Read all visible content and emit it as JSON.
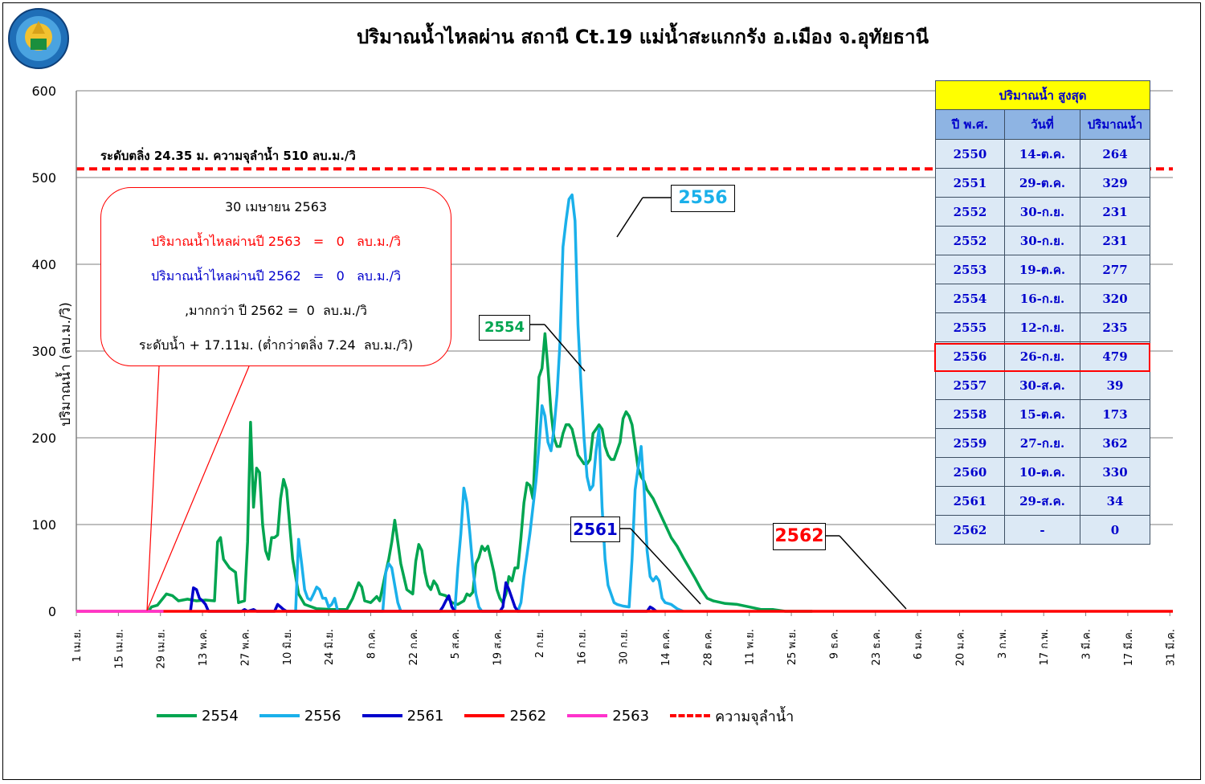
{
  "title": "ปริมาณน้ำไหลผ่าน สถานี Ct.19 แม่น้ำสะแกกรัง อ.เมือง จ.อุทัยธานี",
  "logo_text": "กรมชลประทาน",
  "ylabel": "ปริมาณน้ำ (ลบ.ม./วิ)",
  "flood_label": "ระดับตลิ่ง 24.35 ม. ความจุลำน้ำ 510 ลบ.ม./วิ",
  "callout": {
    "date": "30 เมษายน 2563",
    "line1": "ปริมาณน้ำไหลผ่านปี 2563   =   0   ลบ.ม./วิ",
    "line2": "ปริมาณน้ำไหลผ่านปี 2562   =   0   ลบ.ม./วิ",
    "line3": ",มากกว่า ปี 2562 =  0  ลบ.ม./วิ",
    "line4": "ระดับน้ำ + 17.11ม. (ต่ำกว่าตลิ่ง 7.24  ลบ.ม./วิ)"
  },
  "tags": {
    "t2556": "2556",
    "t2554": "2554",
    "t2561": "2561",
    "t2562": "2562"
  },
  "table": {
    "title": "ปริมาณน้ำ สูงสุด",
    "headers": [
      "ปี พ.ศ.",
      "วันที่",
      "ปริมาณน้ำ"
    ],
    "rows": [
      [
        "2550",
        "14-ต.ค.",
        "264"
      ],
      [
        "2551",
        "29-ต.ค.",
        "329"
      ],
      [
        "2552",
        "30-ก.ย.",
        "231"
      ],
      [
        "2552",
        "30-ก.ย.",
        "231"
      ],
      [
        "2553",
        "19-ต.ค.",
        "277"
      ],
      [
        "2554",
        "16-ก.ย.",
        "320"
      ],
      [
        "2555",
        "12-ก.ย.",
        "235"
      ],
      [
        "2556",
        "26-ก.ย.",
        "479"
      ],
      [
        "2557",
        "30-ส.ค.",
        "39"
      ],
      [
        "2558",
        "15-ต.ค.",
        "173"
      ],
      [
        "2559",
        "27-ก.ย.",
        "362"
      ],
      [
        "2560",
        "10-ต.ค.",
        "330"
      ],
      [
        "2561",
        "29-ส.ค.",
        "34"
      ],
      [
        "2562",
        "-",
        "0"
      ]
    ]
  },
  "colors": {
    "s2554": "#00a550",
    "s2556": "#1ab0ea",
    "s2561": "#0000cc",
    "s2562": "#ff0000",
    "s2563": "#ff33cc",
    "capacity": "#ff0000",
    "grid": "#7f7f7f"
  },
  "chart_data": {
    "type": "line",
    "ylim": [
      0,
      600
    ],
    "yticks": [
      0,
      100,
      200,
      300,
      400,
      500,
      600
    ],
    "categories": [
      "1 เม.ย.",
      "15 เม.ย.",
      "29 เม.ย.",
      "13 พ.ค.",
      "27 พ.ค.",
      "10 มิ.ย.",
      "24 มิ.ย.",
      "8 ก.ค.",
      "22 ก.ค.",
      "5 ส.ค.",
      "19 ส.ค.",
      "2 ก.ย.",
      "16 ก.ย.",
      "30 ก.ย.",
      "14 ต.ค.",
      "28 ต.ค.",
      "11 พ.ย.",
      "25 พ.ย.",
      "9 ธ.ค.",
      "23 ธ.ค.",
      "6 ม.ค.",
      "20 ม.ค.",
      "3 ก.พ.",
      "17 ก.พ.",
      "3 มี.ค.",
      "17 มี.ค.",
      "31 มี.ค."
    ],
    "capacity": 510,
    "series": [
      {
        "name": "2554",
        "points": [
          [
            24,
            0
          ],
          [
            25,
            5
          ],
          [
            27,
            7
          ],
          [
            30,
            20
          ],
          [
            32,
            18
          ],
          [
            34,
            12
          ],
          [
            37,
            14
          ],
          [
            40,
            12
          ],
          [
            43,
            13
          ],
          [
            46,
            12
          ],
          [
            47,
            80
          ],
          [
            48,
            85
          ],
          [
            49,
            60
          ],
          [
            51,
            50
          ],
          [
            53,
            45
          ],
          [
            54,
            10
          ],
          [
            56,
            12
          ],
          [
            57,
            80
          ],
          [
            58,
            218
          ],
          [
            59,
            120
          ],
          [
            60,
            165
          ],
          [
            61,
            160
          ],
          [
            62,
            100
          ],
          [
            63,
            70
          ],
          [
            64,
            60
          ],
          [
            65,
            85
          ],
          [
            66,
            85
          ],
          [
            67,
            88
          ],
          [
            68,
            130
          ],
          [
            69,
            152
          ],
          [
            70,
            140
          ],
          [
            72,
            60
          ],
          [
            74,
            20
          ],
          [
            76,
            8
          ],
          [
            80,
            3
          ],
          [
            85,
            2
          ],
          [
            90,
            2
          ],
          [
            92,
            15
          ],
          [
            94,
            33
          ],
          [
            95,
            28
          ],
          [
            96,
            12
          ],
          [
            98,
            10
          ],
          [
            100,
            17
          ],
          [
            101,
            12
          ],
          [
            103,
            45
          ],
          [
            104,
            60
          ],
          [
            105,
            80
          ],
          [
            106,
            105
          ],
          [
            107,
            80
          ],
          [
            108,
            55
          ],
          [
            110,
            25
          ],
          [
            112,
            20
          ],
          [
            113,
            58
          ],
          [
            114,
            77
          ],
          [
            115,
            70
          ],
          [
            116,
            45
          ],
          [
            117,
            30
          ],
          [
            118,
            25
          ],
          [
            119,
            35
          ],
          [
            120,
            30
          ],
          [
            121,
            20
          ],
          [
            123,
            18
          ],
          [
            125,
            10
          ],
          [
            127,
            8
          ],
          [
            129,
            12
          ],
          [
            130,
            20
          ],
          [
            131,
            18
          ],
          [
            132,
            22
          ],
          [
            133,
            55
          ],
          [
            134,
            62
          ],
          [
            135,
            75
          ],
          [
            136,
            70
          ],
          [
            137,
            75
          ],
          [
            138,
            60
          ],
          [
            139,
            45
          ],
          [
            140,
            25
          ],
          [
            141,
            15
          ],
          [
            142,
            10
          ],
          [
            143,
            20
          ],
          [
            144,
            40
          ],
          [
            145,
            35
          ],
          [
            146,
            50
          ],
          [
            147,
            50
          ],
          [
            148,
            85
          ],
          [
            149,
            125
          ],
          [
            150,
            148
          ],
          [
            151,
            145
          ],
          [
            152,
            130
          ],
          [
            153,
            200
          ],
          [
            154,
            270
          ],
          [
            155,
            280
          ],
          [
            156,
            320
          ],
          [
            157,
            280
          ],
          [
            158,
            230
          ],
          [
            159,
            200
          ],
          [
            160,
            190
          ],
          [
            161,
            190
          ],
          [
            162,
            205
          ],
          [
            163,
            215
          ],
          [
            164,
            215
          ],
          [
            165,
            210
          ],
          [
            166,
            195
          ],
          [
            167,
            180
          ],
          [
            168,
            175
          ],
          [
            169,
            170
          ],
          [
            170,
            170
          ],
          [
            171,
            175
          ],
          [
            172,
            205
          ],
          [
            173,
            210
          ],
          [
            174,
            215
          ],
          [
            175,
            210
          ],
          [
            176,
            190
          ],
          [
            177,
            180
          ],
          [
            178,
            175
          ],
          [
            179,
            175
          ],
          [
            180,
            185
          ],
          [
            181,
            195
          ],
          [
            182,
            222
          ],
          [
            183,
            230
          ],
          [
            184,
            225
          ],
          [
            185,
            215
          ],
          [
            186,
            190
          ],
          [
            187,
            165
          ],
          [
            188,
            155
          ],
          [
            189,
            150
          ],
          [
            190,
            140
          ],
          [
            192,
            130
          ],
          [
            194,
            115
          ],
          [
            196,
            100
          ],
          [
            198,
            85
          ],
          [
            200,
            75
          ],
          [
            202,
            62
          ],
          [
            204,
            50
          ],
          [
            206,
            38
          ],
          [
            208,
            25
          ],
          [
            210,
            15
          ],
          [
            212,
            12
          ],
          [
            216,
            9
          ],
          [
            220,
            8
          ],
          [
            224,
            5
          ],
          [
            228,
            2
          ],
          [
            232,
            2
          ],
          [
            236,
            0
          ],
          [
            240,
            0
          ],
          [
            245,
            0
          ]
        ]
      },
      {
        "name": "2556",
        "points": [
          [
            73,
            0
          ],
          [
            74,
            83
          ],
          [
            75,
            55
          ],
          [
            76,
            25
          ],
          [
            77,
            15
          ],
          [
            78,
            13
          ],
          [
            79,
            20
          ],
          [
            80,
            28
          ],
          [
            81,
            25
          ],
          [
            82,
            15
          ],
          [
            83,
            15
          ],
          [
            84,
            5
          ],
          [
            85,
            8
          ],
          [
            86,
            15
          ],
          [
            87,
            0
          ],
          [
            102,
            0
          ],
          [
            103,
            45
          ],
          [
            104,
            55
          ],
          [
            105,
            50
          ],
          [
            106,
            30
          ],
          [
            107,
            10
          ],
          [
            108,
            0
          ],
          [
            114,
            0
          ],
          [
            126,
            0
          ],
          [
            127,
            50
          ],
          [
            128,
            90
          ],
          [
            129,
            142
          ],
          [
            130,
            125
          ],
          [
            131,
            90
          ],
          [
            132,
            50
          ],
          [
            133,
            20
          ],
          [
            134,
            5
          ],
          [
            135,
            0
          ],
          [
            140,
            0
          ],
          [
            147,
            0
          ],
          [
            148,
            10
          ],
          [
            149,
            40
          ],
          [
            150,
            65
          ],
          [
            151,
            90
          ],
          [
            152,
            120
          ],
          [
            153,
            150
          ],
          [
            154,
            190
          ],
          [
            155,
            237
          ],
          [
            156,
            225
          ],
          [
            157,
            195
          ],
          [
            158,
            185
          ],
          [
            159,
            210
          ],
          [
            160,
            250
          ],
          [
            161,
            310
          ],
          [
            162,
            420
          ],
          [
            163,
            450
          ],
          [
            164,
            475
          ],
          [
            165,
            480
          ],
          [
            166,
            450
          ],
          [
            167,
            330
          ],
          [
            168,
            260
          ],
          [
            169,
            200
          ],
          [
            170,
            155
          ],
          [
            171,
            140
          ],
          [
            172,
            145
          ],
          [
            173,
            185
          ],
          [
            174,
            210
          ],
          [
            175,
            120
          ],
          [
            176,
            60
          ],
          [
            177,
            30
          ],
          [
            178,
            20
          ],
          [
            179,
            10
          ],
          [
            180,
            8
          ],
          [
            182,
            6
          ],
          [
            184,
            5
          ],
          [
            185,
            60
          ],
          [
            186,
            140
          ],
          [
            187,
            165
          ],
          [
            188,
            190
          ],
          [
            189,
            140
          ],
          [
            190,
            70
          ],
          [
            191,
            40
          ],
          [
            192,
            35
          ],
          [
            193,
            40
          ],
          [
            194,
            35
          ],
          [
            195,
            15
          ],
          [
            196,
            10
          ],
          [
            198,
            8
          ],
          [
            200,
            3
          ],
          [
            202,
            0
          ]
        ]
      },
      {
        "name": "2561",
        "points": [
          [
            38,
            0
          ],
          [
            39,
            27
          ],
          [
            40,
            25
          ],
          [
            41,
            15
          ],
          [
            42,
            12
          ],
          [
            43,
            8
          ],
          [
            44,
            0
          ],
          [
            55,
            0
          ],
          [
            56,
            2
          ],
          [
            57,
            0
          ],
          [
            59,
            2
          ],
          [
            60,
            0
          ],
          [
            66,
            0
          ],
          [
            67,
            8
          ],
          [
            68,
            5
          ],
          [
            69,
            2
          ],
          [
            70,
            0
          ],
          [
            121,
            0
          ],
          [
            122,
            5
          ],
          [
            123,
            12
          ],
          [
            124,
            18
          ],
          [
            125,
            5
          ],
          [
            126,
            0
          ],
          [
            141,
            0
          ],
          [
            142,
            5
          ],
          [
            143,
            33
          ],
          [
            144,
            25
          ],
          [
            145,
            15
          ],
          [
            146,
            5
          ],
          [
            147,
            0
          ],
          [
            190,
            0
          ],
          [
            191,
            5
          ],
          [
            192,
            3
          ],
          [
            193,
            0
          ]
        ]
      },
      {
        "name": "2562",
        "points": [
          [
            0,
            0
          ],
          [
            365,
            0
          ]
        ]
      },
      {
        "name": "2563",
        "points": [
          [
            0,
            0
          ],
          [
            29,
            0
          ]
        ]
      }
    ]
  },
  "legend": [
    "2554",
    "2556",
    "2561",
    "2562",
    "2563",
    "ความจุลำน้ำ"
  ]
}
